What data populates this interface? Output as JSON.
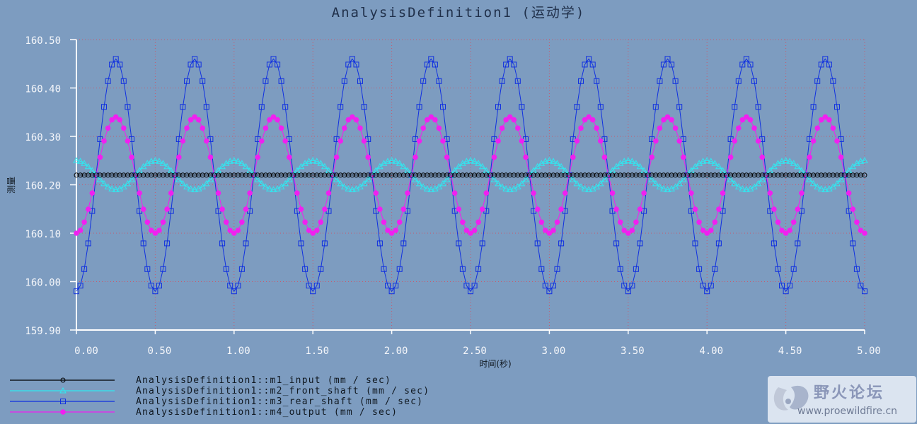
{
  "chart_data": {
    "type": "line",
    "title": "AnalysisDefinition1 (运动学)",
    "xlabel": "时间(秒)",
    "ylabel": "测量",
    "xlim": [
      0,
      5
    ],
    "ylim": [
      159.9,
      160.5
    ],
    "xticks": [
      "0.00",
      "0.50",
      "1.00",
      "1.50",
      "2.00",
      "2.50",
      "3.00",
      "3.50",
      "4.00",
      "4.50",
      "5.00"
    ],
    "yticks": [
      "160.50",
      "160.40",
      "160.30",
      "160.20",
      "160.10",
      "160.00",
      "159.90"
    ],
    "grid": true,
    "legend_position": "bottom-left",
    "sample_step": 0.025,
    "series": [
      {
        "name": "AnalysisDefinition1::m1_input (mm / sec)",
        "marker": "circle-open",
        "color": "#000000",
        "function": "constant",
        "mean": 160.22,
        "amplitude": 0,
        "period": 0.5,
        "phase_shift": 0
      },
      {
        "name": "AnalysisDefinition1::m2_front_shaft (mm / sec)",
        "marker": "triangle-open",
        "color": "#30e8f0",
        "function": "cosine",
        "mean": 160.22,
        "amplitude": 0.03,
        "period": 0.5,
        "phase_shift": 0
      },
      {
        "name": "AnalysisDefinition1::m3_rear_shaft (mm / sec)",
        "marker": "square-open",
        "color": "#1030e0",
        "function": "negative-cosine",
        "mean": 160.22,
        "amplitude": 0.24,
        "period": 0.5,
        "phase_shift": 0
      },
      {
        "name": "AnalysisDefinition1::m4_output (mm / sec)",
        "marker": "circle-filled",
        "color": "#f020f0",
        "function": "negative-cosine",
        "mean": 160.22,
        "amplitude": 0.12,
        "period": 0.5,
        "phase_shift": 0
      }
    ]
  },
  "watermark": {
    "title": "野火论坛",
    "url": "www.proewildfire.cn"
  },
  "colors": {
    "background": "#7d9cc0",
    "axis": "#ffffff",
    "grid": "#c85a6e",
    "watermark_bg": "#e8eef6"
  }
}
